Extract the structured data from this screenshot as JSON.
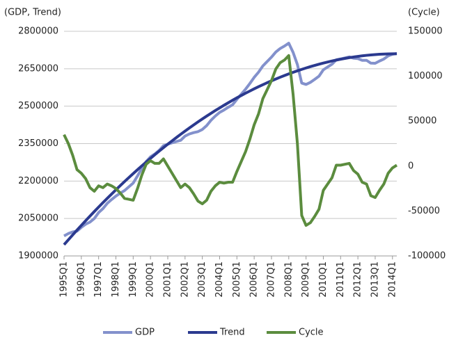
{
  "chart_data": {
    "type": "line",
    "y_label": "(GDP, Trend)",
    "y2_label": "(Cycle)",
    "categories": [
      "1995Q1",
      null,
      null,
      null,
      "1996Q1",
      null,
      null,
      null,
      "1997Q1",
      null,
      null,
      null,
      "1998Q1",
      null,
      null,
      null,
      "1999Q1",
      null,
      null,
      null,
      "2000Q1",
      null,
      null,
      null,
      "2001Q1",
      null,
      null,
      null,
      "2002Q1",
      null,
      null,
      null,
      "2003Q1",
      null,
      null,
      null,
      "2004Q1",
      null,
      null,
      null,
      "2005Q1",
      null,
      null,
      null,
      "2006Q1",
      null,
      null,
      null,
      "2007Q1",
      null,
      null,
      null,
      "2008Q1",
      null,
      null,
      null,
      "2009Q1",
      null,
      null,
      null,
      "2010Q1",
      null,
      null,
      null,
      "2011Q1",
      null,
      null,
      null,
      "2012Q1",
      null,
      null,
      null,
      "2013Q1",
      null,
      null,
      null,
      "2014Q1",
      null
    ],
    "series": [
      {
        "name": "GDP",
        "color": "#8391cc",
        "values": [
          1980000,
          1989700,
          1996200,
          1999400,
          2014400,
          2027100,
          2035600,
          2049800,
          2073700,
          2089400,
          2110800,
          2125900,
          2139800,
          2151500,
          2161900,
          2177000,
          2191900,
          2220500,
          2250800,
          2277900,
          2296800,
          2308400,
          2322700,
          2341700,
          2347600,
          2353100,
          2358400,
          2363400,
          2380200,
          2388700,
          2394000,
          2398000,
          2406700,
          2422200,
          2443400,
          2460400,
          2475100,
          2484600,
          2495700,
          2505700,
          2527400,
          2547800,
          2568000,
          2590800,
          2615500,
          2635900,
          2661000,
          2678900,
          2696500,
          2716800,
          2730900,
          2740800,
          2752400,
          2715700,
          2666700,
          2592500,
          2587100,
          2595400,
          2607400,
          2620200,
          2645700,
          2657000,
          2668000,
          2685700,
          2689200,
          2693400,
          2697400,
          2692100,
          2690500,
          2683700,
          2683700,
          2672400,
          2671800,
          2680900,
          2688800,
          2701500,
          2707900,
          2711000
        ]
      },
      {
        "name": "Trend",
        "color": "#2b3a8f",
        "values": [
          1945000,
          1964700,
          1984200,
          2003400,
          2022400,
          2041100,
          2059600,
          2077800,
          2095700,
          2113400,
          2130800,
          2147900,
          2164800,
          2181500,
          2197900,
          2214000,
          2229900,
          2245500,
          2260800,
          2275900,
          2290800,
          2305400,
          2319700,
          2333700,
          2347600,
          2361100,
          2374400,
          2387400,
          2400200,
          2412700,
          2425000,
          2437000,
          2448700,
          2460200,
          2471400,
          2482400,
          2493100,
          2503600,
          2513700,
          2523700,
          2533400,
          2542800,
          2552000,
          2560800,
          2569500,
          2577900,
          2586000,
          2593900,
          2601500,
          2608800,
          2615900,
          2622800,
          2629400,
          2635700,
          2641700,
          2647500,
          2653100,
          2658400,
          2663400,
          2668200,
          2672700,
          2677000,
          2681000,
          2684700,
          2688200,
          2691400,
          2694400,
          2697100,
          2699500,
          2701700,
          2703700,
          2705400,
          2706800,
          2707900,
          2708800,
          2709500,
          2709900,
          2710000
        ]
      },
      {
        "name": "Cycle",
        "color": "#5b8c3e",
        "axis": "y2",
        "values": [
          35000,
          25000,
          12000,
          -4000,
          -8000,
          -14000,
          -24000,
          -28000,
          -22000,
          -24000,
          -20000,
          -22000,
          -25000,
          -30000,
          -36000,
          -37000,
          -38000,
          -25000,
          -10000,
          2000,
          6000,
          3000,
          3000,
          8000,
          0,
          -8000,
          -16000,
          -24000,
          -20000,
          -24000,
          -31000,
          -39000,
          -42000,
          -38000,
          -28000,
          -22000,
          -18000,
          -19000,
          -18000,
          -18000,
          -6000,
          5000,
          16000,
          30000,
          46000,
          58000,
          75000,
          85000,
          95000,
          108000,
          115000,
          118000,
          123000,
          80000,
          25000,
          -55000,
          -66000,
          -63000,
          -56000,
          -48000,
          -27000,
          -20000,
          -13000,
          1000,
          1000,
          2000,
          3000,
          -5000,
          -9000,
          -18000,
          -20000,
          -33000,
          -35000,
          -27000,
          -20000,
          -8000,
          -2000,
          1000
        ]
      }
    ],
    "ylim": [
      1900000,
      2800000
    ],
    "yticks": [
      1900000,
      2050000,
      2200000,
      2350000,
      2500000,
      2650000,
      2800000
    ],
    "y2lim": [
      -100000,
      150000
    ],
    "y2ticks": [
      -100000,
      -50000,
      0,
      50000,
      100000,
      150000
    ],
    "grid": true,
    "legend": "bottom"
  }
}
